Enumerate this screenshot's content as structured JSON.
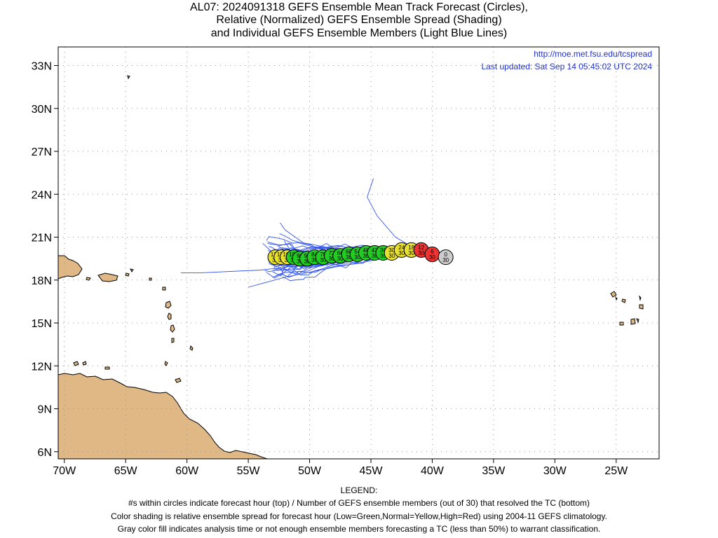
{
  "title": {
    "line1": "AL07: 2024091318 GEFS Ensemble Mean Track Forecast (Circles),",
    "line2": "Relative (Normalized) GEFS Ensemble Spread (Shading)",
    "line3": "and Individual GEFS Ensemble Members (Light Blue Lines)"
  },
  "header": {
    "url": "http://moe.met.fsu.edu/tcspread",
    "updated": "Last updated: Sat Sep 14 05:45:02 UTC 2024"
  },
  "axes": {
    "lat_ticks": [
      {
        "value": 33,
        "label": "33N"
      },
      {
        "value": 30,
        "label": "30N"
      },
      {
        "value": 27,
        "label": "27N"
      },
      {
        "value": 24,
        "label": "24N"
      },
      {
        "value": 21,
        "label": "21N"
      },
      {
        "value": 18,
        "label": "18N"
      },
      {
        "value": 15,
        "label": "15N"
      },
      {
        "value": 12,
        "label": "12N"
      },
      {
        "value": 9,
        "label": "9N"
      },
      {
        "value": 6,
        "label": "6N"
      }
    ],
    "lon_ticks": [
      {
        "value": -70,
        "label": "70W"
      },
      {
        "value": -65,
        "label": "65W"
      },
      {
        "value": -60,
        "label": "60W"
      },
      {
        "value": -55,
        "label": "55W"
      },
      {
        "value": -50,
        "label": "50W"
      },
      {
        "value": -45,
        "label": "45W"
      },
      {
        "value": -40,
        "label": "40W"
      },
      {
        "value": -35,
        "label": "35W"
      },
      {
        "value": -30,
        "label": "30W"
      },
      {
        "value": -25,
        "label": "25W"
      }
    ],
    "lon_range": [
      -70.5,
      -21.5
    ],
    "lat_range": [
      5.5,
      34.3
    ],
    "grid": true
  },
  "colors": {
    "land": "#dfb886",
    "coast": "#000000",
    "member_track": "#3355ee",
    "grid": "#999999",
    "low_spread": "#22cc22",
    "normal_spread": "#e8e030",
    "high_spread": "#ee3333",
    "unclassified": "#cccccc",
    "link_text": "#2233cc"
  },
  "mean_track": [
    {
      "hour": "0",
      "members": "30",
      "lon": -38.9,
      "lat": 19.6,
      "class": "unclassified"
    },
    {
      "hour": "6",
      "members": "30",
      "lon": -40.0,
      "lat": 19.8,
      "class": "high_spread"
    },
    {
      "hour": "12",
      "members": "30",
      "lon": -40.9,
      "lat": 20.1,
      "class": "high_spread"
    },
    {
      "hour": "18",
      "members": "30",
      "lon": -41.7,
      "lat": 20.1,
      "class": "normal_spread"
    },
    {
      "hour": "24",
      "members": "30",
      "lon": -42.5,
      "lat": 20.1,
      "class": "normal_spread"
    },
    {
      "hour": "30",
      "members": "30",
      "lon": -43.3,
      "lat": 19.9,
      "class": "normal_spread"
    },
    {
      "hour": "36",
      "members": "30",
      "lon": -44.0,
      "lat": 19.9,
      "class": "low_spread"
    },
    {
      "hour": "42",
      "members": "30",
      "lon": -44.7,
      "lat": 19.9,
      "class": "low_spread"
    },
    {
      "hour": "48",
      "members": "30",
      "lon": -45.4,
      "lat": 19.9,
      "class": "low_spread"
    },
    {
      "hour": "54",
      "members": "30",
      "lon": -46.1,
      "lat": 19.8,
      "class": "low_spread"
    },
    {
      "hour": "60",
      "members": "30",
      "lon": -46.8,
      "lat": 19.8,
      "class": "low_spread"
    },
    {
      "hour": "66",
      "members": "30",
      "lon": -47.5,
      "lat": 19.7,
      "class": "low_spread"
    },
    {
      "hour": "72",
      "members": "30",
      "lon": -48.2,
      "lat": 19.7,
      "class": "low_spread"
    },
    {
      "hour": "78",
      "members": "30",
      "lon": -48.9,
      "lat": 19.6,
      "class": "low_spread"
    },
    {
      "hour": "84",
      "members": "30",
      "lon": -49.6,
      "lat": 19.6,
      "class": "low_spread"
    },
    {
      "hour": "90",
      "members": "30",
      "lon": -50.2,
      "lat": 19.5,
      "class": "low_spread"
    },
    {
      "hour": "96",
      "members": "30",
      "lon": -50.8,
      "lat": 19.5,
      "class": "low_spread"
    },
    {
      "hour": "102",
      "members": "30",
      "lon": -51.3,
      "lat": 19.6,
      "class": "low_spread"
    },
    {
      "hour": "108",
      "members": "30",
      "lon": -51.8,
      "lat": 19.6,
      "class": "normal_spread"
    },
    {
      "hour": "114",
      "members": "30",
      "lon": -52.3,
      "lat": 19.6,
      "class": "normal_spread"
    },
    {
      "hour": "120",
      "members": "30",
      "lon": -52.8,
      "lat": 19.6,
      "class": "normal_spread"
    }
  ],
  "legend": {
    "heading": "LEGEND:",
    "line1": "#s within circles indicate forecast hour (top) / Number of GEFS ensemble members (out of 30) that resolved the TC (bottom)",
    "line2": "Color shading is relative ensemble spread for forecast hour (Low=Green,Normal=Yellow,High=Red) using 2004-11 GEFS climatology.",
    "line3": "Gray color fill indicates analysis time or not enough ensemble members forecasting a TC (less than 50%) to warrant classification."
  }
}
